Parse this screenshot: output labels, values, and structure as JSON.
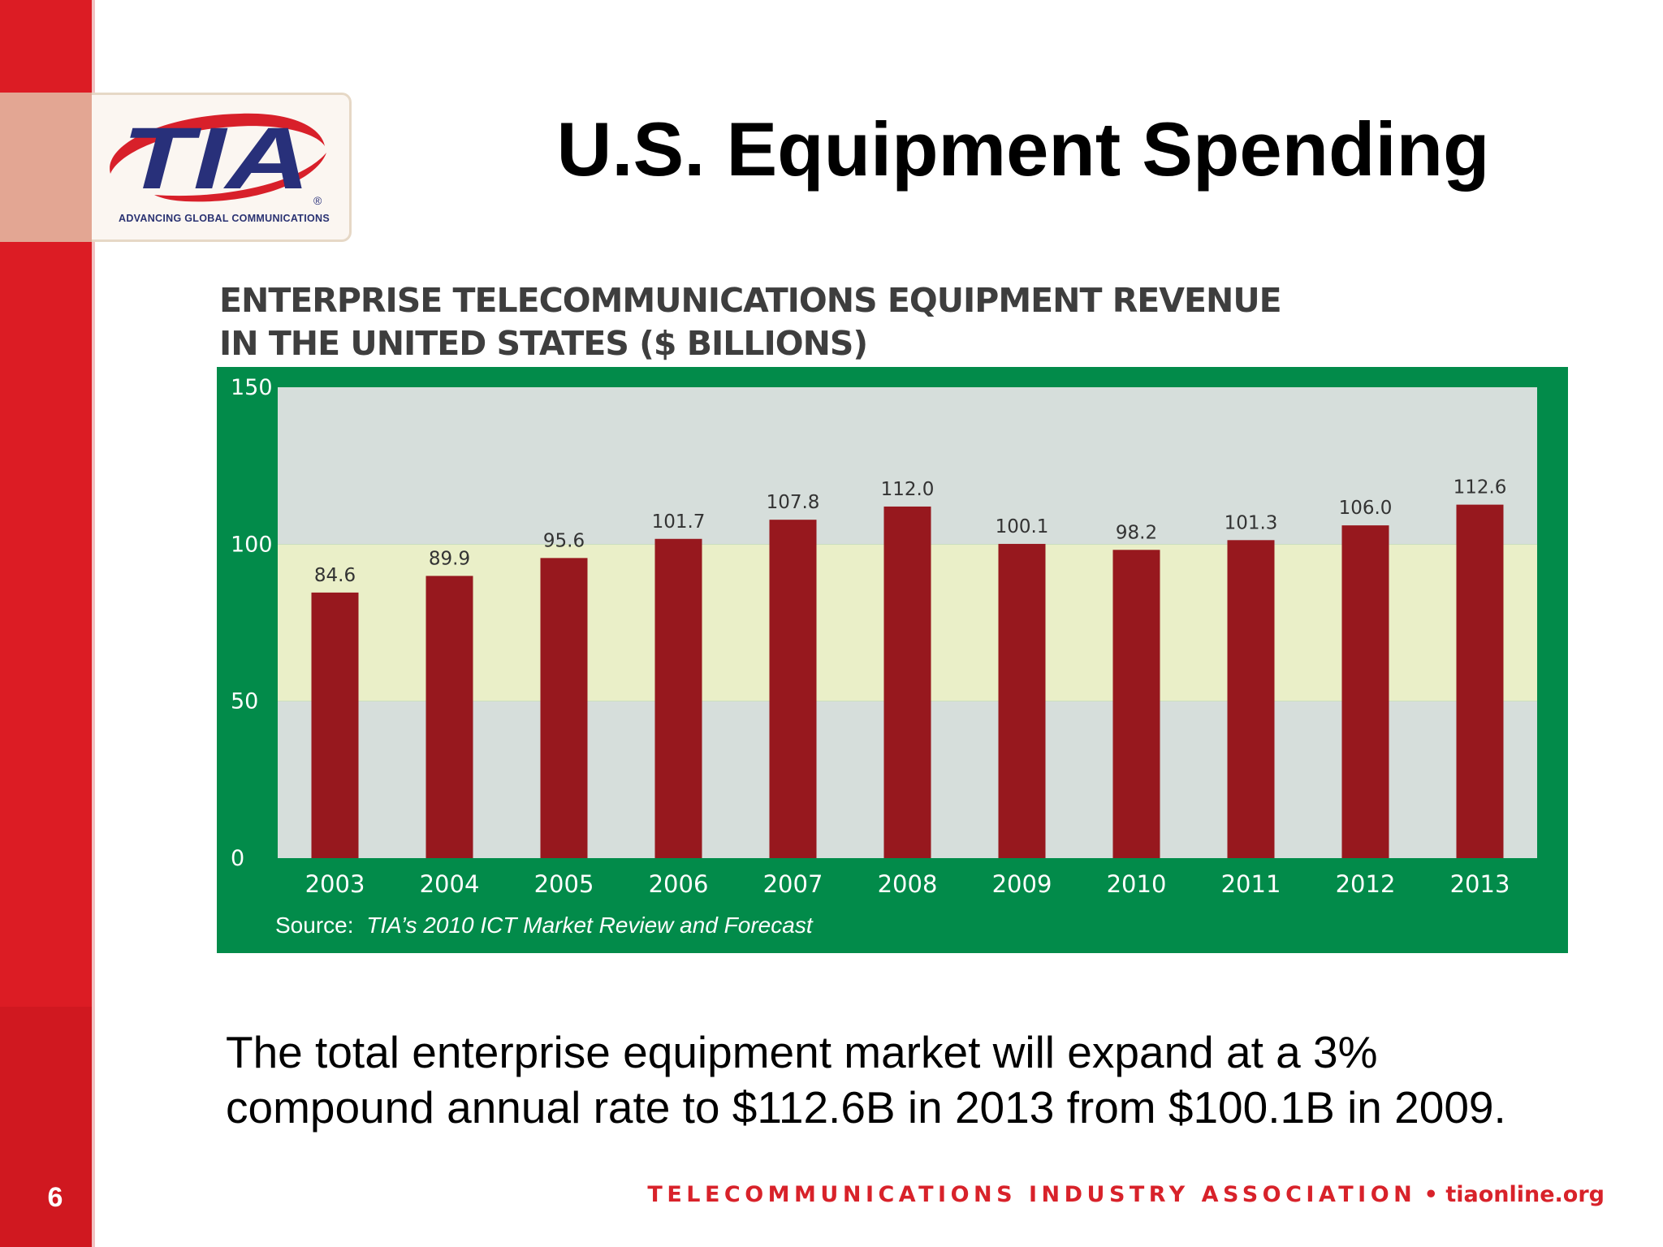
{
  "slide": {
    "title": "U.S. Equipment Spending",
    "page_number": "6",
    "body_line1": "The total enterprise equipment market will expand at a 3%",
    "body_line2": "compound annual rate to $112.6B in 2013 from $100.1B in 2009.",
    "footer_org": "TELECOMMUNICATIONS INDUSTRY ASSOCIATION",
    "footer_sep": " • ",
    "footer_url": "tiaonline.org"
  },
  "logo": {
    "text": "TIA",
    "registered": "®",
    "tagline": "ADVANCING GLOBAL COMMUNICATIONS"
  },
  "chart_data": {
    "type": "bar",
    "title_line1": "ENTERPRISE TELECOMMUNICATIONS EQUIPMENT REVENUE",
    "title_line2": "IN THE UNITED STATES ($ BILLIONS)",
    "categories": [
      "2003",
      "2004",
      "2005",
      "2006",
      "2007",
      "2008",
      "2009",
      "2010",
      "2011",
      "2012",
      "2013"
    ],
    "values": [
      84.6,
      89.9,
      95.6,
      101.7,
      107.8,
      112.0,
      100.1,
      98.2,
      101.3,
      106.0,
      112.6
    ],
    "value_labels": [
      "84.6",
      "89.9",
      "95.6",
      "101.7",
      "107.8",
      "112.0",
      "100.1",
      "98.2",
      "101.3",
      "106.0",
      "112.6"
    ],
    "ylim": [
      0,
      150
    ],
    "yticks": [
      0,
      50,
      100,
      150
    ],
    "ytick_labels": [
      "0",
      "50",
      "100",
      "150"
    ],
    "xlabel": "",
    "ylabel": "",
    "grid": false,
    "legend": "none",
    "source_prefix": "Source:",
    "source_text": "TIA’s 2010 ICT Market Review and Forecast",
    "colors": {
      "frame": "#028b4a",
      "plot_band_low": "#d6dedb",
      "plot_band_mid": "#eaefc8",
      "plot_band_high": "#d6dedb",
      "bar": "#97181e",
      "label": "#333333"
    }
  },
  "colors": {
    "brand_red": "#dc1c24",
    "logo_blue": "#28307a",
    "logo_red": "#d8202a"
  }
}
